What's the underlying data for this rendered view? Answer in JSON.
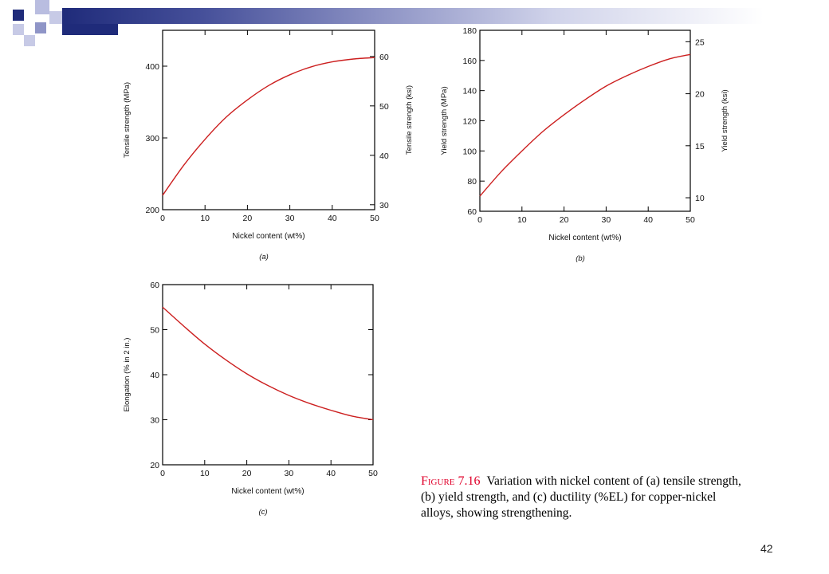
{
  "slide": {
    "page_number": "42",
    "accent_color": "#1f2b7a",
    "curve_color": "#cc1f1f"
  },
  "caption": {
    "figure_label": "Figure 7.16",
    "text": "Variation with nickel content of (a) tensile strength, (b) yield strength, and (c) ductility (%EL) for copper-nickel alloys, showing strengthening."
  },
  "chart_data": [
    {
      "id": "a",
      "type": "line",
      "panel_label": "(a)",
      "xlabel": "Nickel content (wt%)",
      "ylabel": "Tensile strength (MPa)",
      "ylabel_right": "Tensile strength (ksi)",
      "xlim": [
        0,
        50
      ],
      "ylim": [
        200,
        450
      ],
      "ylim_right": [
        29,
        65.3
      ],
      "xticks": [
        "0",
        "10",
        "20",
        "30",
        "40",
        "50"
      ],
      "yticks": [
        "200",
        "300",
        "400"
      ],
      "yticks_right": [
        "30",
        "40",
        "50",
        "60"
      ],
      "grid": false,
      "series": [
        {
          "x": [
            0,
            5,
            10,
            15,
            20,
            25,
            30,
            35,
            40,
            45,
            50
          ],
          "y": [
            220,
            262,
            298,
            329,
            353,
            373,
            388,
            399,
            406,
            410,
            412
          ]
        }
      ]
    },
    {
      "id": "b",
      "type": "line",
      "panel_label": "(b)",
      "xlabel": "Nickel content (wt%)",
      "ylabel": "Yield strength (MPa)",
      "ylabel_right": "Yield strength (ksi)",
      "xlim": [
        0,
        50
      ],
      "ylim": [
        60,
        180
      ],
      "ylim_right": [
        8.7,
        26.1
      ],
      "xticks": [
        "0",
        "10",
        "20",
        "30",
        "40",
        "50"
      ],
      "yticks": [
        "60",
        "80",
        "100",
        "120",
        "140",
        "160",
        "180"
      ],
      "yticks_right": [
        "10",
        "15",
        "20",
        "25"
      ],
      "grid": false,
      "series": [
        {
          "x": [
            0,
            5,
            10,
            15,
            20,
            25,
            30,
            35,
            40,
            45,
            50
          ],
          "y": [
            70,
            86,
            100,
            113,
            124,
            134,
            143,
            150,
            156,
            161,
            164
          ]
        }
      ]
    },
    {
      "id": "c",
      "type": "line",
      "panel_label": "(c)",
      "xlabel": "Nickel content (wt%)",
      "ylabel": "Elongation (% in 2 in.)",
      "xlim": [
        0,
        50
      ],
      "ylim": [
        20,
        60
      ],
      "xticks": [
        "0",
        "10",
        "20",
        "30",
        "40",
        "50"
      ],
      "yticks": [
        "20",
        "30",
        "40",
        "50",
        "60"
      ],
      "grid": false,
      "series": [
        {
          "x": [
            0,
            5,
            10,
            15,
            20,
            25,
            30,
            35,
            40,
            45,
            50
          ],
          "y": [
            55,
            50.8,
            46.8,
            43.3,
            40.2,
            37.6,
            35.4,
            33.6,
            32.1,
            30.8,
            30
          ]
        }
      ]
    }
  ]
}
